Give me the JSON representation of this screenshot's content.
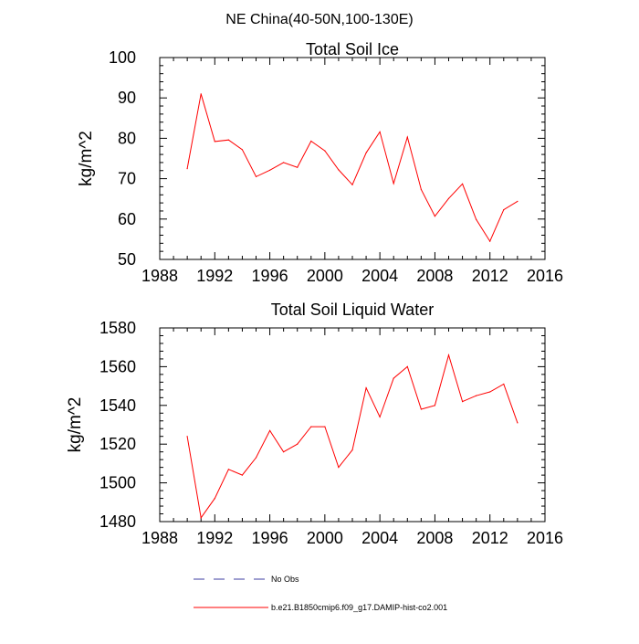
{
  "figure": {
    "title": "NE China(40-50N,100-130E)",
    "legend": [
      {
        "label": "No Obs",
        "color": "#3c3ca0",
        "dash": "dashed"
      },
      {
        "label": "b.e21.B1850cmip6.f09_g17.DAMIP-hist-co2.001",
        "color": "#ff0000",
        "dash": "solid"
      }
    ]
  },
  "chart_data": [
    {
      "type": "line",
      "title": "Total Soil Ice",
      "xlabel": "",
      "ylabel": "kg/m^2",
      "xlim": [
        1988,
        2016
      ],
      "ylim": [
        50,
        100
      ],
      "x_ticks": [
        1988,
        1992,
        1996,
        2000,
        2004,
        2008,
        2012,
        2016
      ],
      "y_ticks": [
        50,
        60,
        70,
        80,
        90,
        100
      ],
      "grid": false,
      "series": [
        {
          "name": "b.e21.B1850cmip6.f09_g17.DAMIP-hist-co2.001",
          "color": "#ff0000",
          "x": [
            1990,
            1991,
            1992,
            1993,
            1994,
            1995,
            1996,
            1997,
            1998,
            1999,
            2000,
            2001,
            2002,
            2003,
            2004,
            2005,
            2006,
            2007,
            2008,
            2009,
            2010,
            2011,
            2012,
            2013,
            2014
          ],
          "values": [
            72.5,
            91.0,
            79.2,
            79.6,
            77.2,
            70.5,
            72.1,
            74.0,
            72.8,
            79.3,
            76.9,
            72.2,
            68.5,
            76.4,
            81.6,
            68.8,
            80.3,
            67.3,
            60.7,
            65.1,
            68.7,
            59.9,
            54.5,
            62.3,
            64.4
          ]
        }
      ]
    },
    {
      "type": "line",
      "title": "Total Soil Liquid Water",
      "xlabel": "",
      "ylabel": "kg/m^2",
      "xlim": [
        1988,
        2016
      ],
      "ylim": [
        1480,
        1580
      ],
      "x_ticks": [
        1988,
        1992,
        1996,
        2000,
        2004,
        2008,
        2012,
        2016
      ],
      "y_ticks": [
        1480,
        1500,
        1520,
        1540,
        1560,
        1580
      ],
      "grid": false,
      "series": [
        {
          "name": "b.e21.B1850cmip6.f09_g17.DAMIP-hist-co2.001",
          "color": "#ff0000",
          "x": [
            1990,
            1991,
            1992,
            1993,
            1994,
            1995,
            1996,
            1997,
            1998,
            1999,
            2000,
            2001,
            2002,
            2003,
            2004,
            2005,
            2006,
            2007,
            2008,
            2009,
            2010,
            2011,
            2012,
            2013,
            2014
          ],
          "values": [
            1524,
            1482,
            1492,
            1507,
            1504,
            1513,
            1527,
            1516,
            1520,
            1529,
            1529,
            1508,
            1517,
            1549,
            1534,
            1554,
            1560,
            1538,
            1540,
            1566,
            1542,
            1545,
            1547,
            1551,
            1531
          ]
        }
      ]
    }
  ]
}
